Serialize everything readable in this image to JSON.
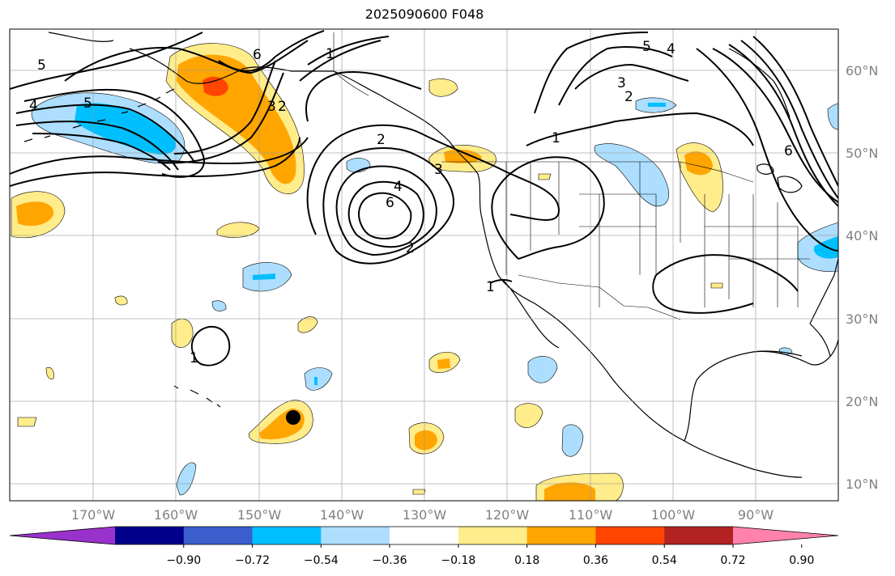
{
  "title": "2025090600 F048",
  "latitude_labels": [
    "60°N",
    "50°N",
    "40°N",
    "30°N",
    "20°N",
    "10°N"
  ],
  "longitude_labels": [
    "170°W",
    "160°W",
    "150°W",
    "140°W",
    "130°W",
    "120°W",
    "110°W",
    "100°W",
    "90°W"
  ],
  "colorbar": {
    "colors": [
      "#9932CC",
      "#00008B",
      "#3A5FCD",
      "#00BFFF",
      "#ADDEFF",
      "#FFFFFF",
      "#FFEC8B",
      "#FFA500",
      "#FF4500",
      "#B22222",
      "#FF82AB"
    ],
    "ticks": [
      "−0.90",
      "−0.72",
      "−0.54",
      "−0.36",
      "−0.18",
      "0.18",
      "0.36",
      "0.54",
      "0.72",
      "0.90"
    ]
  },
  "contour_labels": [
    "5",
    "4",
    "5",
    "6",
    "1",
    "5",
    "4",
    "3",
    "2",
    "1",
    "2",
    "3",
    "4",
    "6",
    "2",
    "3",
    "1",
    "1",
    "2",
    "6"
  ],
  "marker": "storm-center"
}
